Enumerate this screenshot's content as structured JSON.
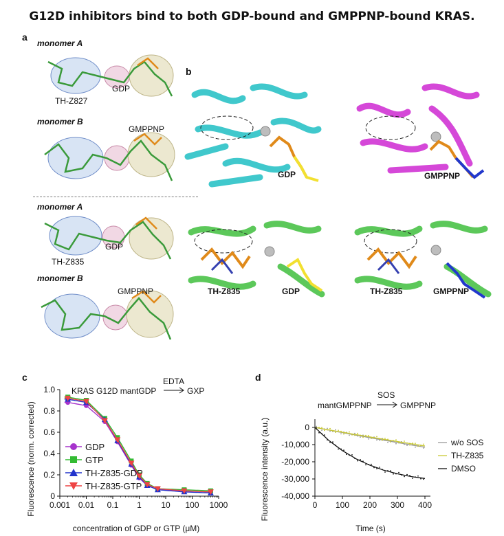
{
  "title": "G12D inhibitors bind to both GDP-bound and GMPPNP-bound KRAS.",
  "panel_a": {
    "label": "a",
    "monomer_a": "monomer A",
    "monomer_b": "monomer B",
    "compound_1": "TH-Z827",
    "compound_2": "TH-Z835",
    "ligand_gdp": "GDP",
    "ligand_gmppnp": "GMPPNP"
  },
  "panel_b": {
    "label": "b",
    "top_left_ligand": "GDP",
    "top_right_ligand": "GMPPNP",
    "bottom_left_compound": "TH-Z835",
    "bottom_left_ligand": "GDP",
    "bottom_right_compound": "TH-Z835",
    "bottom_right_ligand": "GMPPNP",
    "colors": {
      "cyan": "#40c8cc",
      "magenta": "#d548d8",
      "green": "#5cc85a"
    }
  },
  "chart_data": [
    {
      "panel": "c",
      "type": "line",
      "annotation_left": "KRAS G12D mantGDP",
      "annotation_arrow_label": "EDTA",
      "annotation_right": "GXP",
      "xlabel": "concentration of GDP or GTP (μM)",
      "ylabel": "Fluorescence (norm. corrected)",
      "xscale": "log",
      "xlim": [
        0.001,
        1000
      ],
      "ylim": [
        0,
        1.0
      ],
      "xticks": [
        "0.001",
        "0.01",
        "0.1",
        "1",
        "10",
        "100",
        "1000"
      ],
      "yticks": [
        "0",
        "0.2",
        "0.4",
        "0.6",
        "0.8",
        "1.0"
      ],
      "legend_placement": "bottom-left",
      "x": [
        0.002,
        0.01,
        0.05,
        0.15,
        0.5,
        1,
        2,
        5,
        50,
        500
      ],
      "series": [
        {
          "name": "GDP",
          "marker": "circle",
          "color": "#a633cc",
          "values": [
            0.88,
            0.85,
            0.7,
            0.51,
            0.29,
            0.17,
            0.1,
            0.06,
            0.05,
            0.04
          ]
        },
        {
          "name": "GTP",
          "marker": "square",
          "color": "#33bb33",
          "values": [
            0.93,
            0.9,
            0.73,
            0.55,
            0.33,
            0.2,
            0.12,
            0.07,
            0.06,
            0.05
          ]
        },
        {
          "name": "TH-Z835-GDP",
          "marker": "triangle-up",
          "color": "#2233cc",
          "values": [
            0.91,
            0.88,
            0.72,
            0.52,
            0.3,
            0.18,
            0.1,
            0.06,
            0.04,
            0.03
          ]
        },
        {
          "name": "TH-Z835-GTP",
          "marker": "triangle-down",
          "color": "#ee4444",
          "values": [
            0.92,
            0.89,
            0.71,
            0.53,
            0.31,
            0.19,
            0.11,
            0.07,
            0.05,
            0.04
          ]
        }
      ]
    },
    {
      "panel": "d",
      "type": "line",
      "annotation_left": "mantGMPPNP",
      "annotation_arrow_label": "SOS",
      "annotation_right": "GMPPNP",
      "xlabel": "Time (s)",
      "ylabel": "Fluorescence intensity (a.u.)",
      "xlim": [
        0,
        400
      ],
      "ylim": [
        -40000,
        0
      ],
      "xticks": [
        "0",
        "100",
        "200",
        "300",
        "400"
      ],
      "yticks": [
        "0",
        "-10,000",
        "-20,000",
        "-30,000",
        "-40,000"
      ],
      "legend_placement": "right",
      "x": [
        0,
        50,
        100,
        150,
        200,
        250,
        300,
        350,
        400
      ],
      "series": [
        {
          "name": "w/o SOS",
          "color": "#999999",
          "values": [
            0,
            -1500,
            -3000,
            -4500,
            -6000,
            -7400,
            -8800,
            -10200,
            -11500
          ]
        },
        {
          "name": "TH-Z835",
          "color": "#c8c832",
          "values": [
            0,
            -1400,
            -2800,
            -4200,
            -5500,
            -6900,
            -8200,
            -9500,
            -10800
          ]
        },
        {
          "name": "DMSO",
          "color": "#111111",
          "values": [
            0,
            -7500,
            -13500,
            -18300,
            -22000,
            -24900,
            -27000,
            -28600,
            -29700
          ]
        }
      ]
    }
  ]
}
